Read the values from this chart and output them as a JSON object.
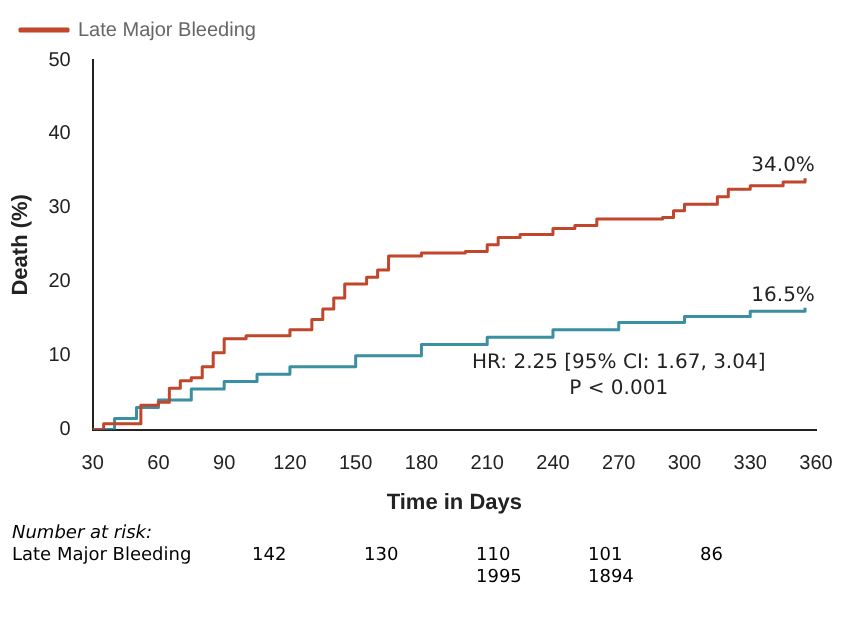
{
  "chart_data": {
    "type": "step",
    "xlabel": "Time in Days",
    "ylabel": "Death (%)",
    "xlim": [
      30,
      360
    ],
    "xticks": [
      30,
      60,
      90,
      120,
      150,
      180,
      210,
      240,
      270,
      300,
      330,
      360
    ],
    "ylim": [
      0,
      50
    ],
    "yticks": [
      0,
      10,
      20,
      30,
      40,
      50
    ],
    "grid": false,
    "legend": "top",
    "marker": "none",
    "line_style": "solid",
    "series": [
      {
        "name": "Late Major Bleeding",
        "color": "#c0462c",
        "x": [
          30,
          35,
          50,
          52,
          60,
          65,
          70,
          75,
          80,
          85,
          90,
          100,
          115,
          120,
          130,
          135,
          140,
          145,
          155,
          160,
          165,
          180,
          200,
          210,
          215,
          225,
          240,
          250,
          260,
          290,
          295,
          300,
          315,
          320,
          330,
          345,
          355
        ],
        "values": [
          0,
          0.8,
          0.8,
          3.3,
          3.7,
          5.6,
          6.6,
          7,
          8.5,
          10.4,
          12.3,
          12.7,
          12.7,
          13.5,
          14.9,
          16.3,
          17.8,
          19.7,
          20.6,
          21.6,
          23.5,
          23.9,
          24.1,
          25,
          26,
          26.4,
          27.2,
          27.6,
          28.5,
          28.7,
          29.6,
          30.5,
          31.5,
          32.5,
          33,
          33.5,
          34
        ]
      },
      {
        "color": "#3a8fa0",
        "x": [
          30,
          40,
          50,
          60,
          75,
          90,
          105,
          120,
          150,
          180,
          210,
          240,
          270,
          300,
          330,
          355
        ],
        "values": [
          0,
          1.5,
          3,
          4,
          5.5,
          6.5,
          7.5,
          8.5,
          10,
          11.5,
          12.5,
          13.5,
          14.5,
          15.3,
          16,
          16.5
        ]
      }
    ],
    "annotations": [
      {
        "text": "34.0%",
        "x": 345,
        "y": 34
      },
      {
        "text": "16.5%",
        "x": 345,
        "y": 16.5
      },
      "HR: 2.25 [95% CI: 1.67, 3.04]",
      "P < 0.001",
      "Number at risk:",
      "Late Major Bleeding",
      "142",
      "130",
      "110",
      "101",
      "86",
      "1995",
      "1894"
    ]
  }
}
